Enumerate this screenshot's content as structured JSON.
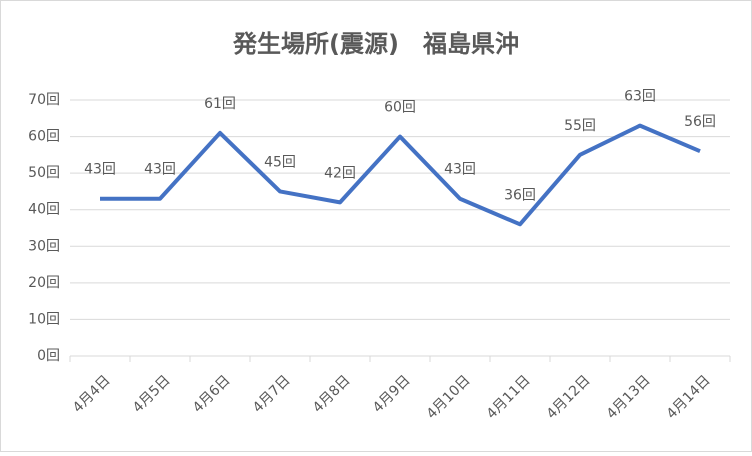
{
  "chart_data": {
    "type": "line",
    "title": "発生場所(震源)　福島県沖",
    "categories": [
      "4月4日",
      "4月5日",
      "4月6日",
      "4月7日",
      "4月8日",
      "4月9日",
      "4月10日",
      "4月11日",
      "4月12日",
      "4月13日",
      "4月14日"
    ],
    "values": [
      43,
      43,
      61,
      45,
      42,
      60,
      43,
      36,
      55,
      63,
      56
    ],
    "value_labels": [
      "43回",
      "43回",
      "61回",
      "45回",
      "42回",
      "60回",
      "43回",
      "36回",
      "55回",
      "63回",
      "56回"
    ],
    "color": "#4472c4",
    "ylim": [
      0,
      70
    ],
    "yticks": [
      {
        "value": 0,
        "label": "0回"
      },
      {
        "value": 10,
        "label": "10回"
      },
      {
        "value": 20,
        "label": "20回"
      },
      {
        "value": 30,
        "label": "30回"
      },
      {
        "value": 40,
        "label": "40回"
      },
      {
        "value": 50,
        "label": "50回"
      },
      {
        "value": 60,
        "label": "60回"
      },
      {
        "value": 70,
        "label": "70回"
      }
    ],
    "grid": true
  }
}
